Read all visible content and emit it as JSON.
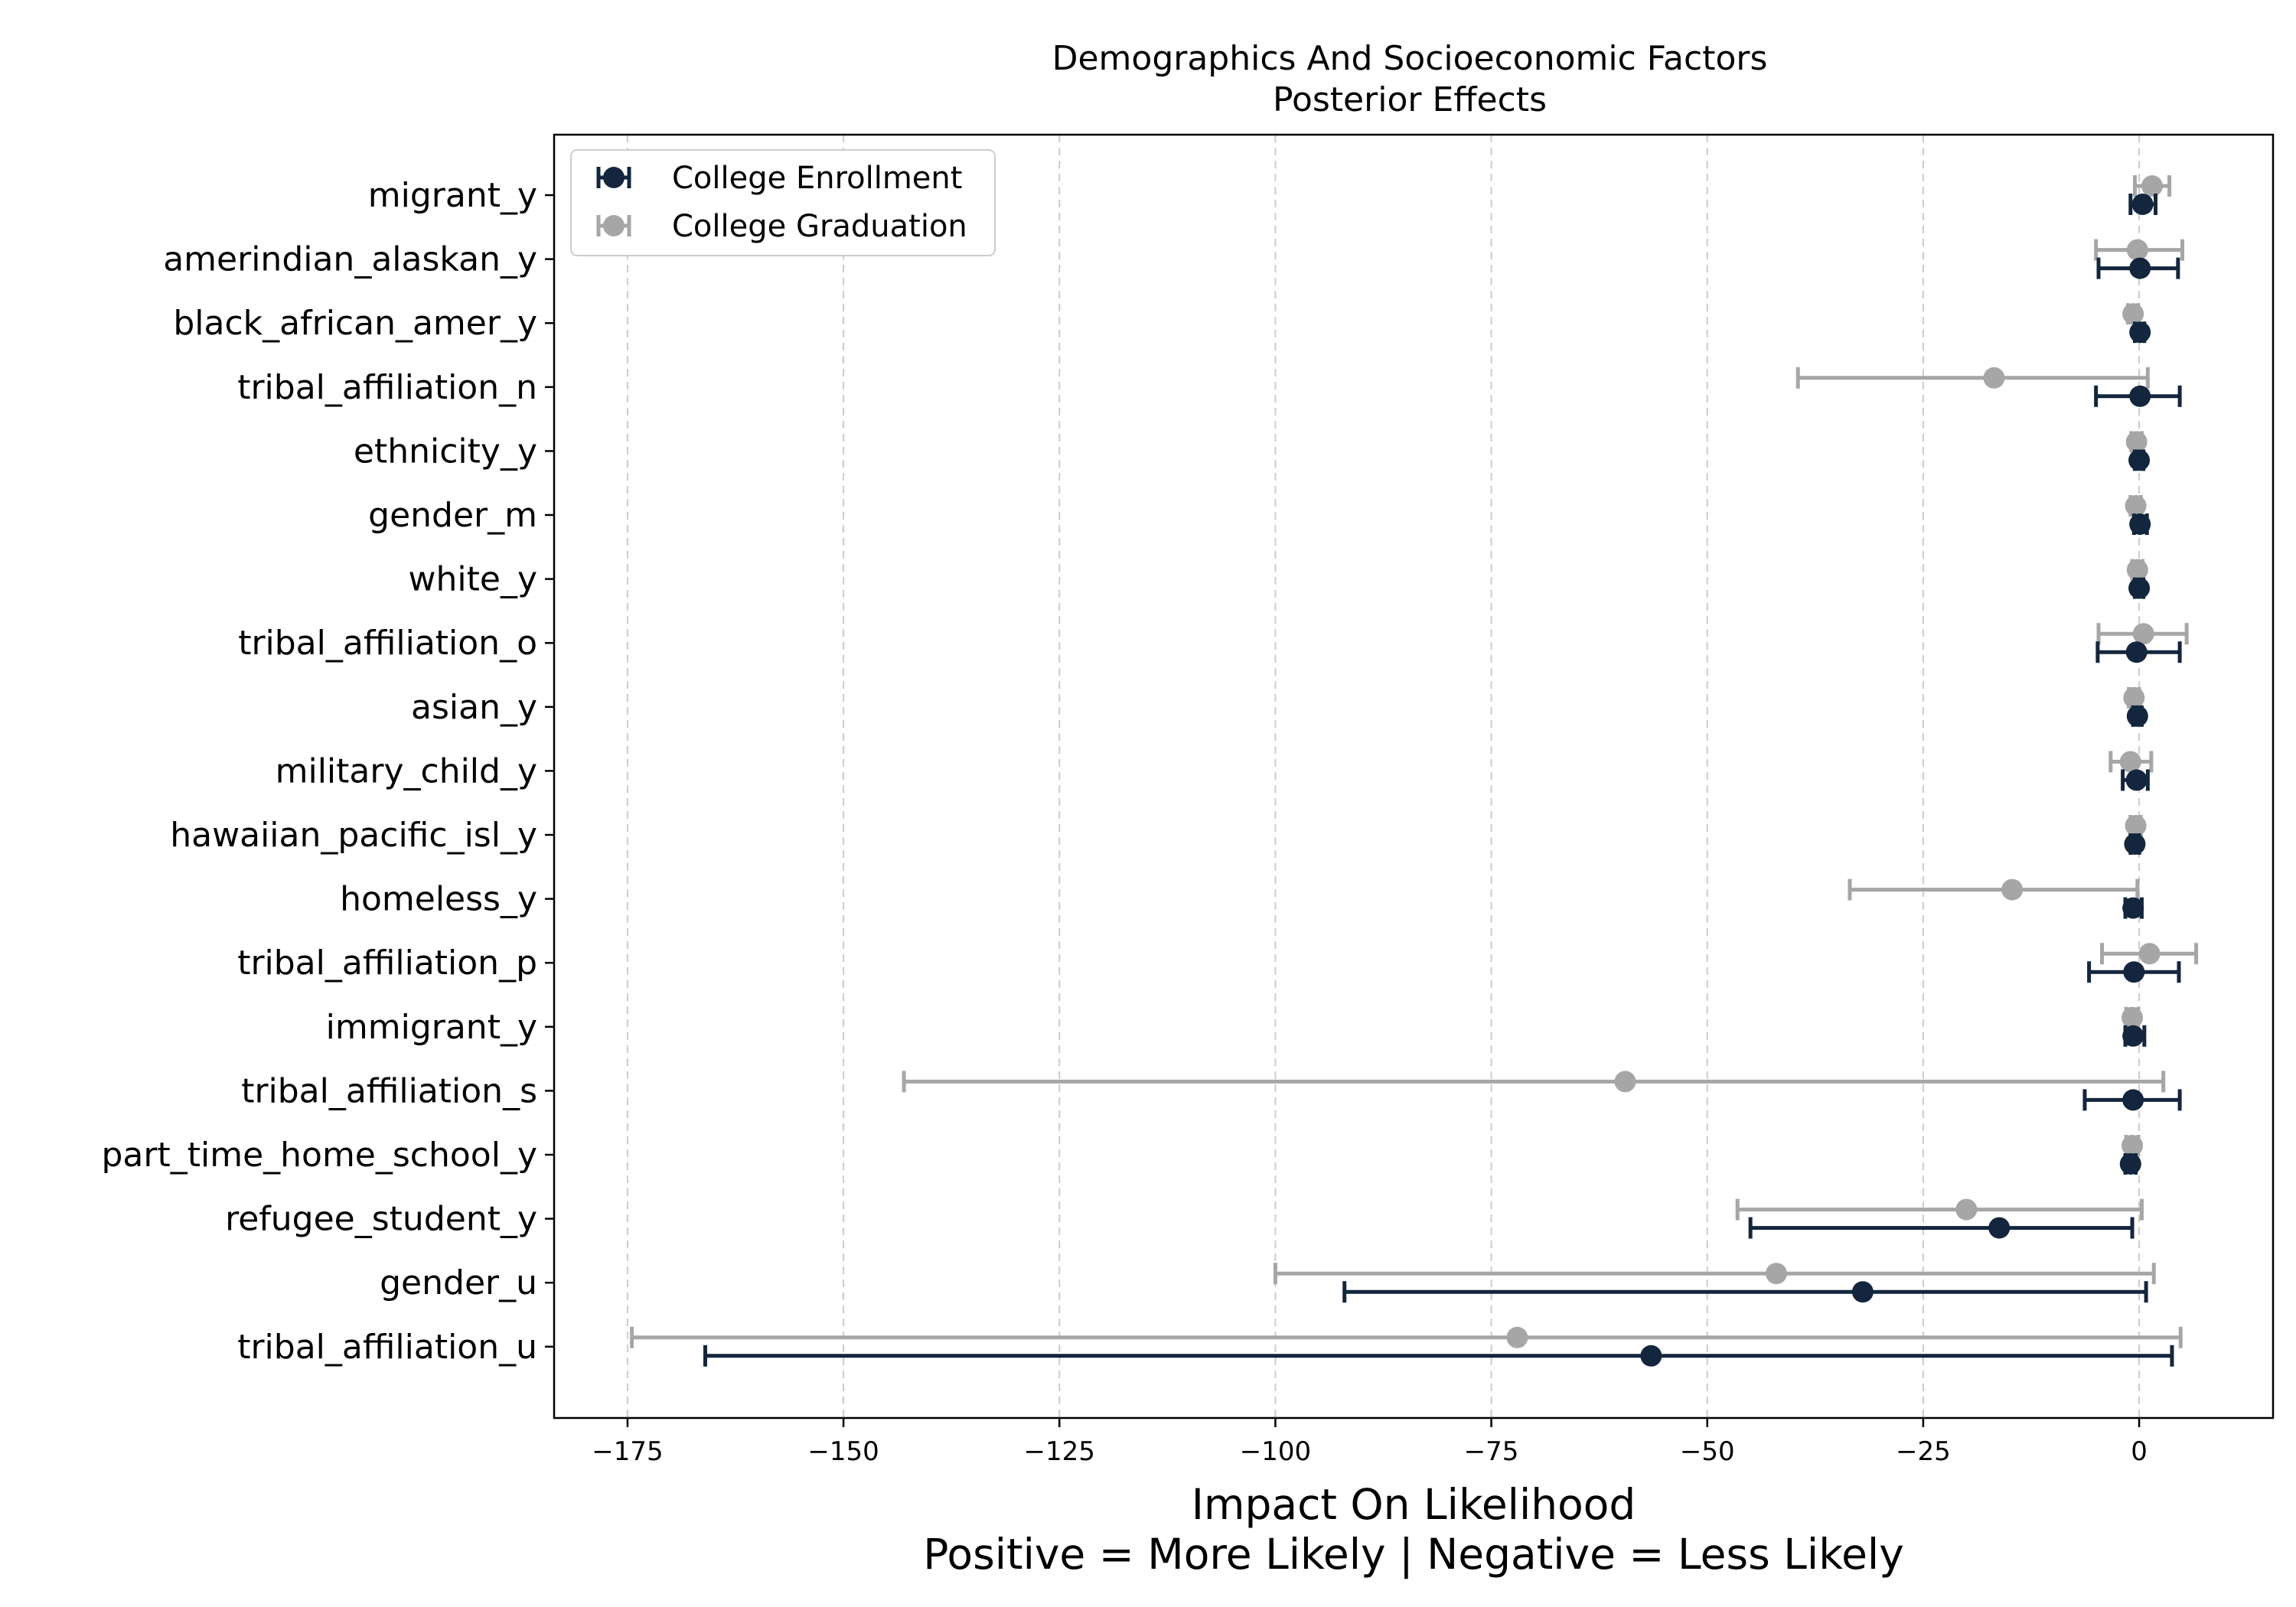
{
  "chart_data": {
    "type": "errorbar",
    "title": "Demographics And Socioeconomic Factors",
    "subtitle": "Posterior Effects",
    "xlabel": "Impact On Likelihood",
    "xlabel_line2": "Positive = More Likely | Negative = Less Likely",
    "xlim": [
      -183.5,
      15.5
    ],
    "xticks": [
      {
        "value": -175,
        "label": "−175"
      },
      {
        "value": -150,
        "label": "−150"
      },
      {
        "value": -125,
        "label": "−125"
      },
      {
        "value": -100,
        "label": "−100"
      },
      {
        "value": -75,
        "label": "−75"
      },
      {
        "value": -50,
        "label": "−50"
      },
      {
        "value": -25,
        "label": "−25"
      },
      {
        "value": 0,
        "label": "0"
      }
    ],
    "grid": "x-dashed",
    "legend_position": "upper-left",
    "categories": [
      "migrant_y",
      "amerindian_alaskan_y",
      "black_african_amer_y",
      "tribal_affiliation_n",
      "ethnicity_y",
      "gender_m",
      "white_y",
      "tribal_affiliation_o",
      "asian_y",
      "military_child_y",
      "hawaiian_pacific_isl_y",
      "homeless_y",
      "tribal_affiliation_p",
      "immigrant_y",
      "tribal_affiliation_s",
      "part_time_home_school_y",
      "refugee_student_y",
      "gender_u",
      "tribal_affiliation_u"
    ],
    "series": [
      {
        "name": "College Enrollment",
        "color": "#13263d",
        "points": [
          {
            "mean": 0.4,
            "low": -1.0,
            "high": 1.9
          },
          {
            "mean": 0.1,
            "low": -4.7,
            "high": 4.5
          },
          {
            "mean": 0.1,
            "low": -0.5,
            "high": 0.6
          },
          {
            "mean": 0.1,
            "low": -5.0,
            "high": 4.7
          },
          {
            "mean": 0.0,
            "low": -0.5,
            "high": 0.5
          },
          {
            "mean": 0.1,
            "low": -0.6,
            "high": 0.9
          },
          {
            "mean": 0.0,
            "low": -0.5,
            "high": 0.5
          },
          {
            "mean": -0.3,
            "low": -4.8,
            "high": 4.7
          },
          {
            "mean": -0.2,
            "low": -0.7,
            "high": 0.3
          },
          {
            "mean": -0.3,
            "low": -1.9,
            "high": 1.0
          },
          {
            "mean": -0.5,
            "low": -1.0,
            "high": 0.0
          },
          {
            "mean": -0.7,
            "low": -1.6,
            "high": 0.3
          },
          {
            "mean": -0.6,
            "low": -5.8,
            "high": 4.6
          },
          {
            "mean": -0.7,
            "low": -1.6,
            "high": 0.6
          },
          {
            "mean": -0.7,
            "low": -6.3,
            "high": 4.7
          },
          {
            "mean": -1.0,
            "low": -1.6,
            "high": -0.4
          },
          {
            "mean": -16.2,
            "low": -45.0,
            "high": -0.8
          },
          {
            "mean": -32.0,
            "low": -92.0,
            "high": 0.8
          },
          {
            "mean": -56.5,
            "low": -166.0,
            "high": 3.8
          }
        ]
      },
      {
        "name": "College Graduation",
        "color": "#a6a6a6",
        "points": [
          {
            "mean": 1.5,
            "low": -0.5,
            "high": 3.5
          },
          {
            "mean": -0.2,
            "low": -5.0,
            "high": 5.0
          },
          {
            "mean": -0.7,
            "low": -1.3,
            "high": -0.1
          },
          {
            "mean": -16.8,
            "low": -39.5,
            "high": 1.0
          },
          {
            "mean": -0.3,
            "low": -0.9,
            "high": 0.3
          },
          {
            "mean": -0.4,
            "low": -1.0,
            "high": 0.2
          },
          {
            "mean": -0.2,
            "low": -0.8,
            "high": 0.4
          },
          {
            "mean": 0.5,
            "low": -4.7,
            "high": 5.5
          },
          {
            "mean": -0.6,
            "low": -1.2,
            "high": 0.0
          },
          {
            "mean": -1.0,
            "low": -3.3,
            "high": 1.4
          },
          {
            "mean": -0.4,
            "low": -1.0,
            "high": 0.2
          },
          {
            "mean": -14.7,
            "low": -33.5,
            "high": -0.2
          },
          {
            "mean": 1.2,
            "low": -4.3,
            "high": 6.6
          },
          {
            "mean": -0.8,
            "low": -1.5,
            "high": -0.1
          },
          {
            "mean": -59.5,
            "low": -143.0,
            "high": 2.8
          },
          {
            "mean": -0.8,
            "low": -1.5,
            "high": -0.1
          },
          {
            "mean": -20.0,
            "low": -46.5,
            "high": 0.3
          },
          {
            "mean": -42.0,
            "low": -100.0,
            "high": 1.7
          },
          {
            "mean": -72.0,
            "low": -174.5,
            "high": 4.8
          }
        ]
      }
    ]
  }
}
